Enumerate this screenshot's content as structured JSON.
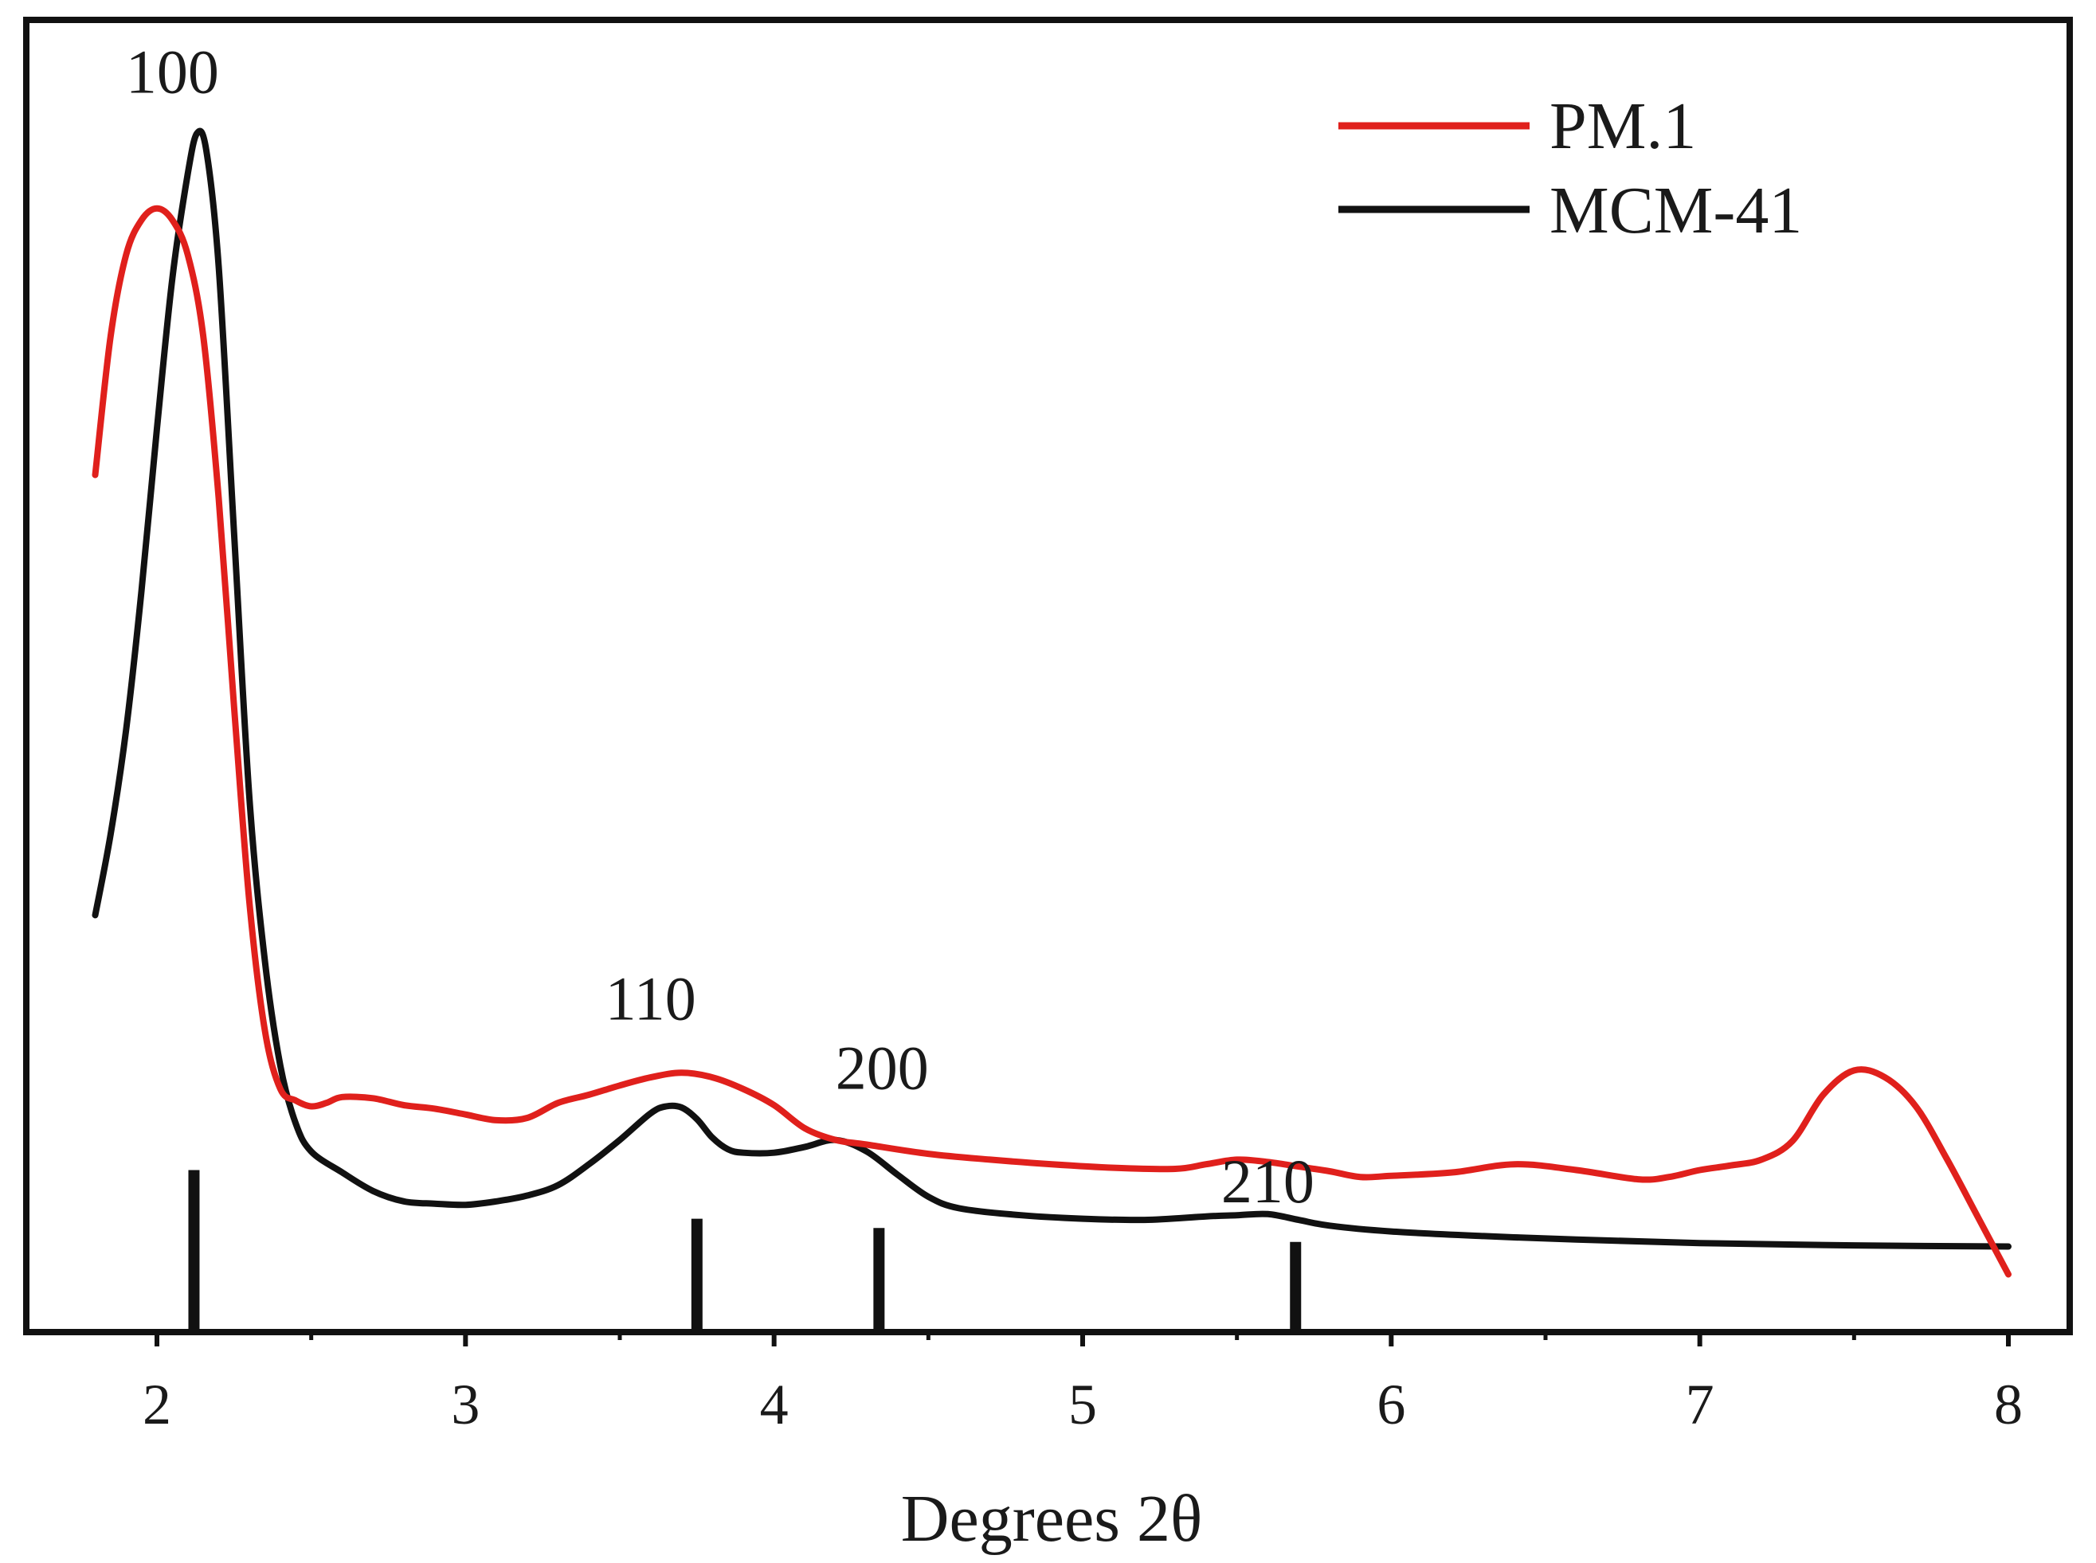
{
  "chart_data": {
    "type": "line",
    "title": "",
    "xlabel": "Degrees 2θ",
    "ylabel": "",
    "xlim": [
      1.6,
      8.1
    ],
    "ylim": [
      0,
      100
    ],
    "xticks": [
      2,
      3,
      4,
      5,
      6,
      7,
      8
    ],
    "xtick_labels": [
      "2",
      "3",
      "4",
      "5",
      "6",
      "7",
      "8"
    ],
    "grid": false,
    "legend_position": "top-right",
    "series": [
      {
        "name": "PM.1",
        "color": "#e0201c",
        "x": [
          1.8,
          1.85,
          1.9,
          1.95,
          2.0,
          2.05,
          2.1,
          2.15,
          2.2,
          2.25,
          2.3,
          2.35,
          2.4,
          2.45,
          2.5,
          2.55,
          2.6,
          2.7,
          2.8,
          2.9,
          3.0,
          3.1,
          3.2,
          3.3,
          3.4,
          3.5,
          3.6,
          3.7,
          3.8,
          3.9,
          4.0,
          4.1,
          4.2,
          4.3,
          4.5,
          4.7,
          4.9,
          5.1,
          5.3,
          5.4,
          5.5,
          5.6,
          5.7,
          5.8,
          5.9,
          6.0,
          6.2,
          6.4,
          6.6,
          6.8,
          6.9,
          7.0,
          7.1,
          7.2,
          7.3,
          7.4,
          7.5,
          7.6,
          7.7,
          7.8,
          7.9,
          8.0
        ],
        "values": [
          70,
          82,
          89,
          92,
          93,
          92,
          89,
          82,
          68,
          50,
          33,
          22,
          17,
          16,
          15.5,
          15.8,
          16.3,
          16.2,
          15.6,
          15.3,
          14.8,
          14.3,
          14.5,
          15.8,
          16.5,
          17.3,
          18.0,
          18.4,
          18.0,
          17.0,
          15.6,
          13.6,
          12.6,
          12.2,
          11.4,
          10.9,
          10.5,
          10.2,
          10.1,
          10.5,
          10.9,
          10.7,
          10.3,
          9.9,
          9.4,
          9.5,
          9.8,
          10.5,
          10.0,
          9.2,
          9.4,
          10.0,
          10.4,
          10.9,
          12.5,
          16.5,
          18.6,
          18.0,
          15.5,
          11.0,
          6.0,
          1.0
        ]
      },
      {
        "name": "MCM-41",
        "color": "#111111",
        "x": [
          1.8,
          1.85,
          1.9,
          1.95,
          2.0,
          2.05,
          2.1,
          2.13,
          2.16,
          2.2,
          2.25,
          2.3,
          2.35,
          2.4,
          2.45,
          2.5,
          2.6,
          2.7,
          2.8,
          2.9,
          3.0,
          3.1,
          3.2,
          3.3,
          3.4,
          3.5,
          3.6,
          3.65,
          3.7,
          3.75,
          3.8,
          3.85,
          3.9,
          4.0,
          4.1,
          4.2,
          4.3,
          4.4,
          4.5,
          4.6,
          4.8,
          5.0,
          5.2,
          5.4,
          5.5,
          5.6,
          5.7,
          5.8,
          6.0,
          6.3,
          6.6,
          7.0,
          7.5,
          8.0
        ],
        "values": [
          32,
          39,
          48,
          60,
          74,
          87,
          96,
          99.5,
          98,
          88,
          65,
          42,
          28,
          19,
          14,
          11.6,
          9.8,
          8.2,
          7.3,
          7.1,
          7.0,
          7.3,
          7.8,
          8.7,
          10.5,
          12.6,
          14.9,
          15.5,
          15.4,
          14.4,
          12.8,
          11.8,
          11.5,
          11.5,
          12.0,
          12.6,
          11.6,
          9.6,
          7.7,
          6.7,
          6.1,
          5.8,
          5.7,
          6.0,
          6.1,
          6.2,
          5.7,
          5.2,
          4.7,
          4.3,
          4.0,
          3.7,
          3.5,
          3.4
        ]
      }
    ],
    "reference_peaks": [
      {
        "x": 2.12,
        "height": 10
      },
      {
        "x": 3.75,
        "height": 5.8
      },
      {
        "x": 4.34,
        "height": 5.0
      },
      {
        "x": 5.69,
        "height": 3.8
      }
    ],
    "annotations": [
      {
        "text": "100",
        "x": 2.05,
        "y": 103
      },
      {
        "text": "110",
        "x": 3.6,
        "y": 23
      },
      {
        "text": "200",
        "x": 4.35,
        "y": 17
      },
      {
        "text": "210",
        "x": 5.6,
        "y": 7.2
      }
    ]
  }
}
